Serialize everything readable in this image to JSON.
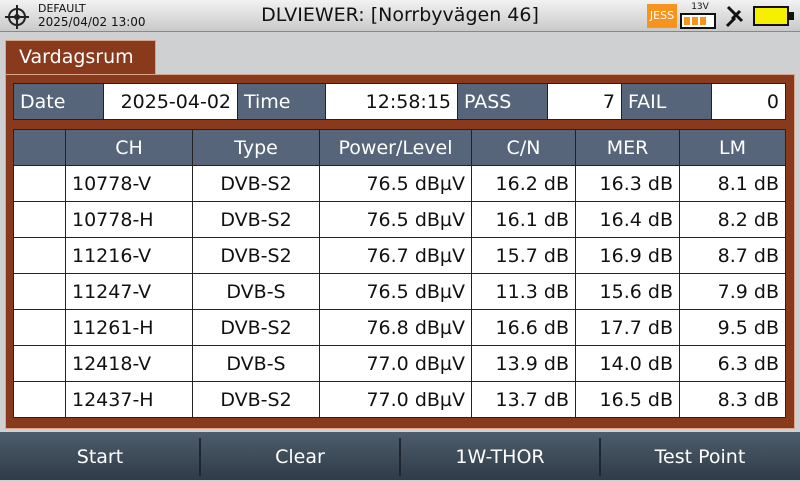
{
  "status_bar": {
    "profile": "DEFAULT",
    "datetime": "2025/04/02 13:00",
    "title": "DLVIEWER: [Norrbyvägen 46]",
    "jess": "JESS",
    "voltage": "13V"
  },
  "tab": "Vardagsrum",
  "summary": [
    [
      "Date",
      "2025-04-02"
    ],
    [
      "Time",
      "12:58:15"
    ],
    [
      "PASS",
      "7"
    ],
    [
      "FAIL",
      "0"
    ]
  ],
  "table": {
    "columns": [
      "CH",
      "Type",
      "Power/Level",
      "C/N",
      "MER",
      "LM"
    ],
    "rows": [
      [
        "10778-V",
        "DVB-S2",
        "76.5 dBµV",
        "16.2 dB",
        "16.3 dB",
        "8.1 dB"
      ],
      [
        "10778-H",
        "DVB-S2",
        "76.5 dBµV",
        "16.1 dB",
        "16.4 dB",
        "8.2 dB"
      ],
      [
        "11216-V",
        "DVB-S2",
        "76.7 dBµV",
        "15.7 dB",
        "16.9 dB",
        "8.7 dB"
      ],
      [
        "11247-V",
        "DVB-S",
        "76.5 dBµV",
        "11.3 dB",
        "15.6 dB",
        "7.9 dB"
      ],
      [
        "11261-H",
        "DVB-S2",
        "76.8 dBµV",
        "16.6 dB",
        "17.7 dB",
        "9.5 dB"
      ],
      [
        "12418-V",
        "DVB-S",
        "77.0 dBµV",
        "13.9 dB",
        "14.0 dB",
        "6.3 dB"
      ],
      [
        "12437-H",
        "DVB-S2",
        "77.0 dBµV",
        "13.7 dB",
        "16.5 dB",
        "8.3 dB"
      ]
    ]
  },
  "buttons": [
    "Start",
    "Clear",
    "1W-THOR",
    "Test Point"
  ]
}
